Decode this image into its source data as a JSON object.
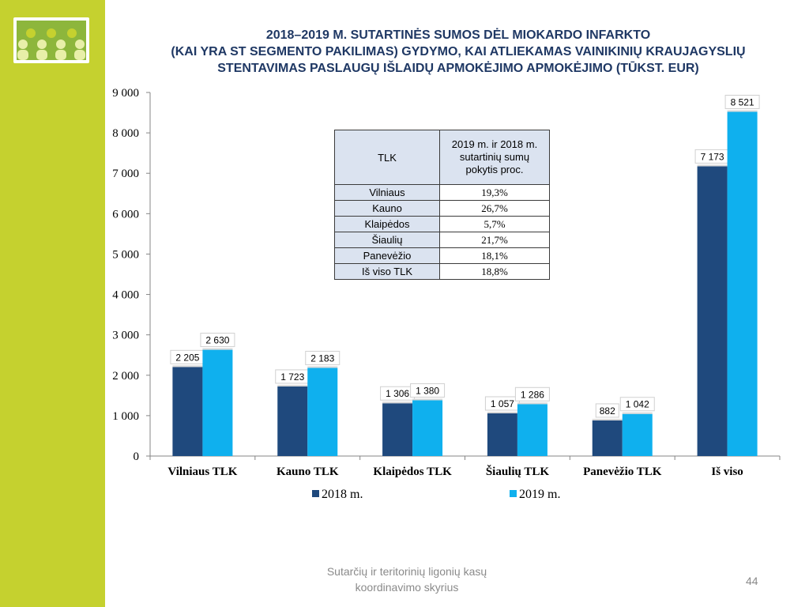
{
  "title_lines": [
    "2018–2019 M. SUTARTINĖS SUMOS DĖL MIOKARDO INFARKTO",
    "(KAI YRA ST  SEGMENTO PAKILIMAS) GYDYMO, KAI ATLIEKAMAS VAINIKINIŲ KRAUJAGYSLIŲ",
    "STENTAVIMAS PASLAUGŲ IŠLAIDŲ APMOKĖJIMO APMOKĖJIMO (TŪKST. EUR)"
  ],
  "chart_data": {
    "type": "bar",
    "categories": [
      "Vilniaus TLK",
      "Kauno TLK",
      "Klaipėdos TLK",
      "Šiaulių TLK",
      "Panevėžio TLK",
      "Iš viso"
    ],
    "series": [
      {
        "name": "2018 m.",
        "color": "#1f497d",
        "values": [
          2205,
          1723,
          1306,
          1057,
          882,
          7173
        ],
        "labels": [
          "2 205",
          "1 723",
          "1 306",
          "1 057",
          "882",
          "7 173"
        ]
      },
      {
        "name": "2019 m.",
        "color": "#0fb0ee",
        "values": [
          2630,
          2183,
          1380,
          1286,
          1042,
          8521
        ],
        "labels": [
          "2 630",
          "2 183",
          "1 380",
          "1 286",
          "1 042",
          "8 521"
        ]
      }
    ],
    "ylim": [
      0,
      9000
    ],
    "yticks": [
      0,
      1000,
      2000,
      3000,
      4000,
      5000,
      6000,
      7000,
      8000,
      9000
    ],
    "ytick_labels": [
      "0",
      "1 000",
      "2 000",
      "3 000",
      "4 000",
      "5 000",
      "6 000",
      "7 000",
      "8 000",
      "9 000"
    ],
    "legend_placement": "bottom",
    "grid": false
  },
  "table": {
    "header_col1": "TLK",
    "header_col2": "2019 m. ir 2018 m. sutartinių sumų pokytis proc.",
    "rows": [
      {
        "name": "Vilniaus",
        "value": "19,3%"
      },
      {
        "name": "Kauno",
        "value": "26,7%"
      },
      {
        "name": "Klaipėdos",
        "value": "5,7%"
      },
      {
        "name": "Šiaulių",
        "value": "21,7%"
      },
      {
        "name": "Panevėžio",
        "value": "18,1%"
      },
      {
        "name": "Iš viso TLK",
        "value": "18,8%"
      }
    ]
  },
  "footer": {
    "line1": "Sutarčių ir teritorinių ligonių kasų",
    "line2": "koordinavimo skyrius",
    "page_number": "44"
  },
  "colors": {
    "sidebar": "#c5d12f",
    "title": "#1f3864",
    "series_2018": "#1f497d",
    "series_2019": "#0fb0ee"
  }
}
